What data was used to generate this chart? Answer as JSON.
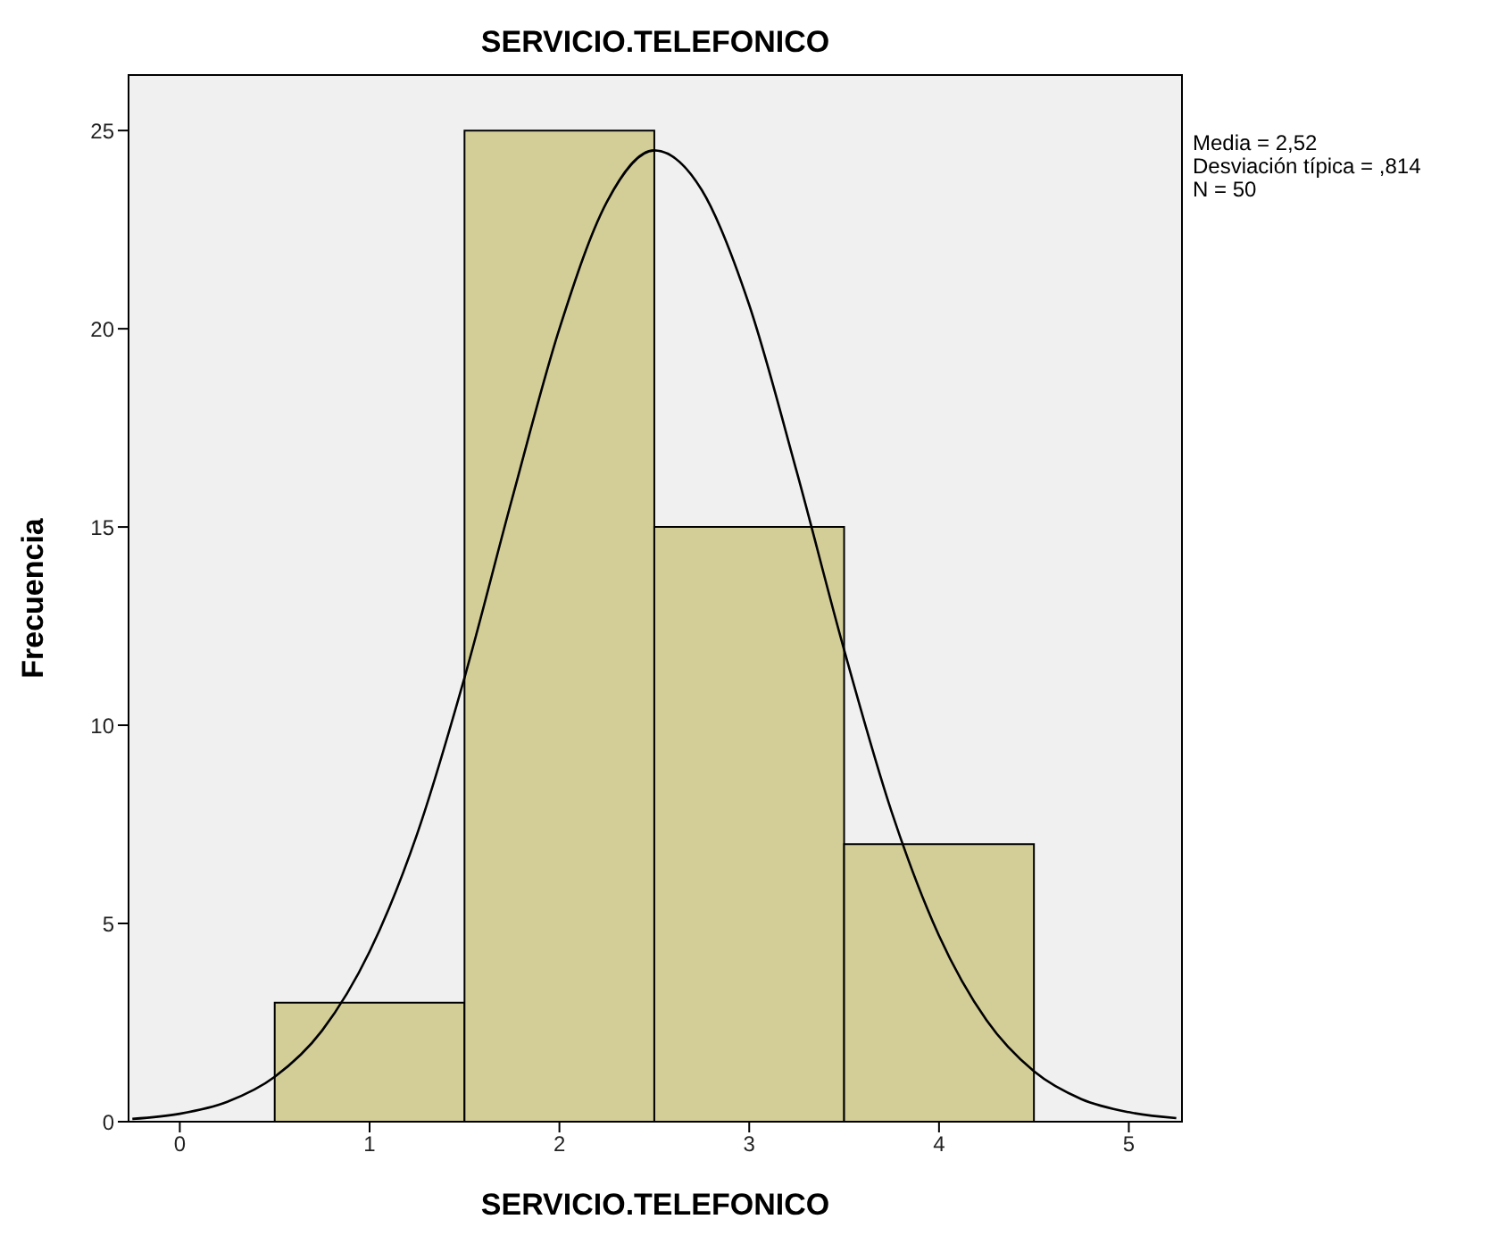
{
  "chart_data": {
    "type": "histogram",
    "title": "SERVICIO.TELEFONICO",
    "xlabel": "SERVICIO.TELEFONICO",
    "ylabel": "Frecuencia",
    "bins": [
      0.5,
      1.5,
      2.5,
      3.5,
      4.5
    ],
    "values": [
      3,
      25,
      15,
      7
    ],
    "color": "#d3ce98",
    "series": [
      {
        "type": "line",
        "color": "#000000",
        "x": [
          -0.25,
          0,
          0.25,
          0.5,
          0.75,
          1,
          1.25,
          1.5,
          1.75,
          2,
          2.25,
          2.5,
          2.75,
          3,
          3.25,
          3.5,
          3.75,
          4,
          4.25,
          4.5,
          4.75,
          5,
          5.25
        ],
        "values": [
          0.07,
          0.2,
          0.5,
          1.13,
          2.3,
          4.29,
          7.25,
          11.2,
          15.7,
          20,
          23.2,
          24.5,
          23.5,
          20.6,
          16.4,
          11.9,
          7.82,
          4.69,
          2.56,
          1.27,
          0.57,
          0.24,
          0.09
        ]
      }
    ],
    "xlim": [
      -0.27,
      5.28
    ],
    "xticks": [
      0,
      1,
      2,
      3,
      4,
      5
    ],
    "ylim": [
      0,
      26.4
    ],
    "yticks": [
      0,
      5,
      10,
      15,
      20,
      25
    ],
    "marker": "none",
    "annotations": [
      "Media = 2,52",
      "Desviación típica = ,814",
      "N = 50"
    ]
  }
}
